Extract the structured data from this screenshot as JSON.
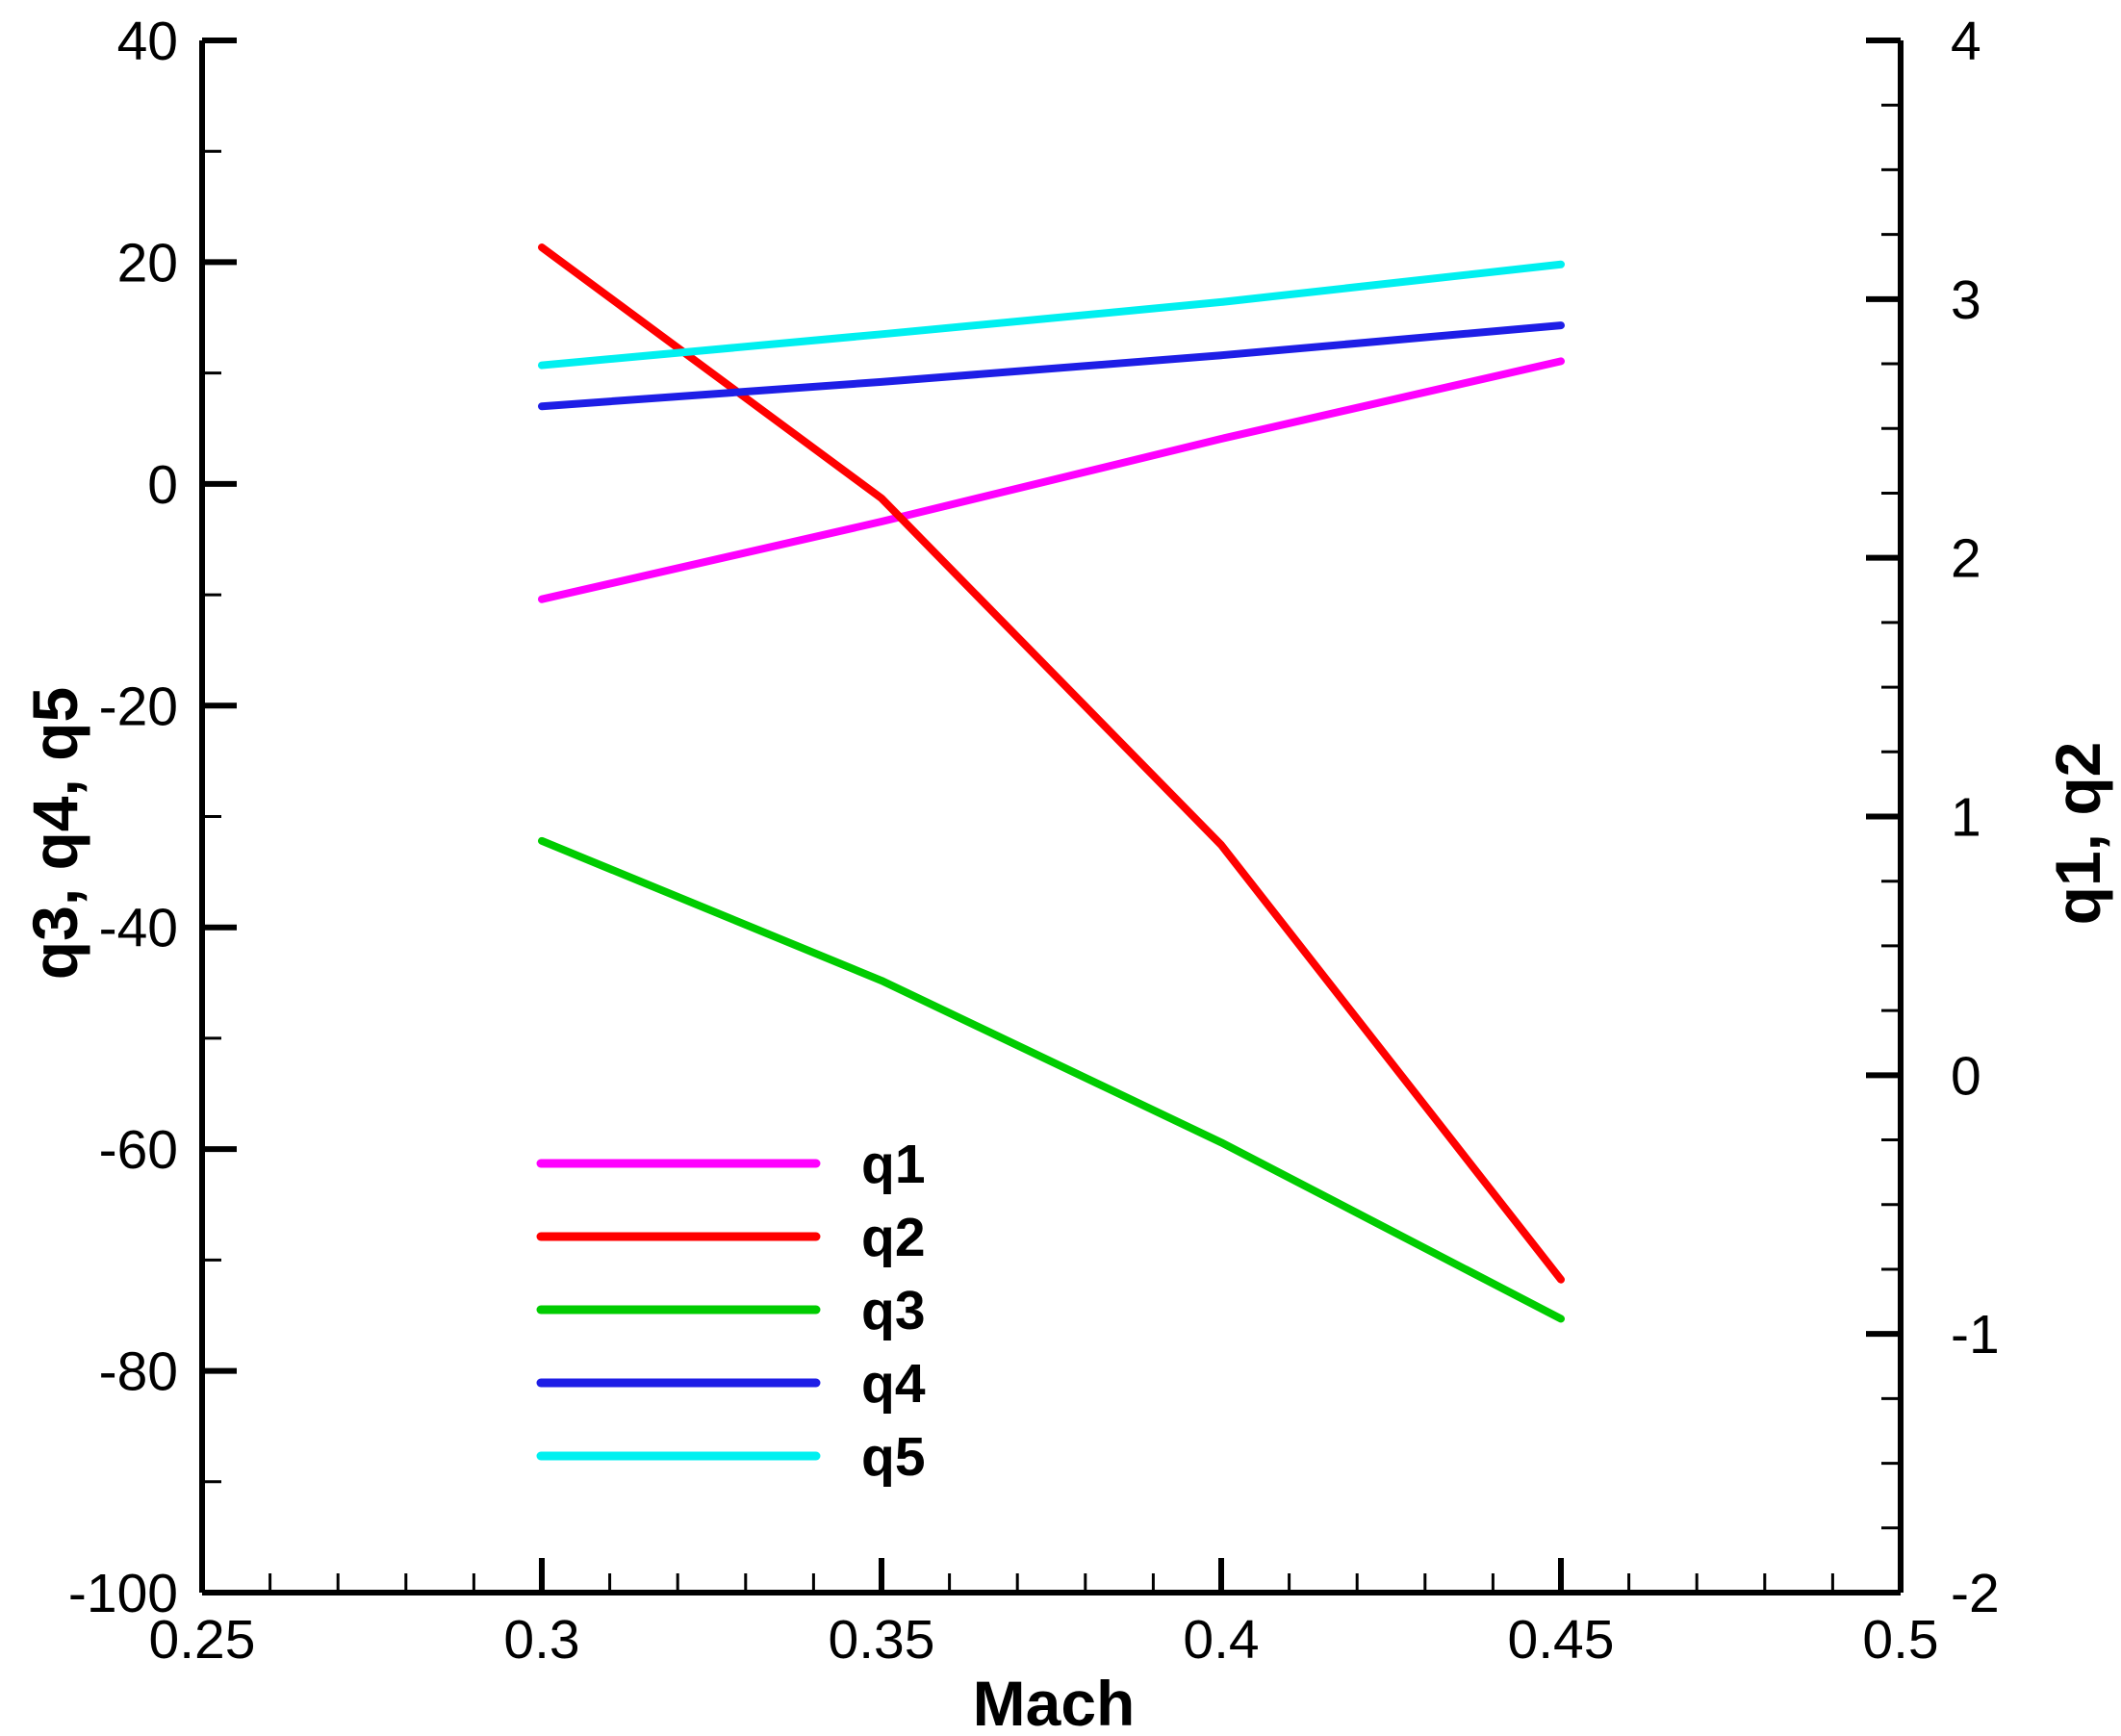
{
  "chart_data": {
    "type": "line",
    "title": "",
    "xlabel": "Mach",
    "ylabel_left": "q3, q4, q5",
    "ylabel_right": "q1, q2",
    "xlim": [
      0.25,
      0.5
    ],
    "ylim_left": [
      -100,
      40
    ],
    "ylim_right": [
      -2,
      4
    ],
    "x_ticks": [
      "0.25",
      "0.3",
      "0.35",
      "0.4",
      "0.45",
      "0.5"
    ],
    "y_left_ticks": [
      "-100",
      "-80",
      "-60",
      "-40",
      "-20",
      "0",
      "20",
      "40"
    ],
    "y_right_ticks": [
      "-2",
      "-1",
      "0",
      "1",
      "2",
      "3",
      "4"
    ],
    "grid": false,
    "legend_position": "lower-left",
    "x": [
      0.3,
      0.35,
      0.4,
      0.45
    ],
    "series": [
      {
        "name": "q1",
        "axis": "right",
        "color": "#ff00ff",
        "values": [
          1.84,
          2.14,
          2.46,
          2.76
        ]
      },
      {
        "name": "q2",
        "axis": "right",
        "color": "#ff0000",
        "values": [
          3.2,
          2.23,
          0.89,
          -0.79
        ]
      },
      {
        "name": "q3",
        "axis": "left",
        "color": "#00cc00",
        "values": [
          -32.2,
          -44.8,
          -59.4,
          -75.3
        ]
      },
      {
        "name": "q4",
        "axis": "left",
        "color": "#1e1ee6",
        "values": [
          7.0,
          9.2,
          11.6,
          14.3
        ]
      },
      {
        "name": "q5",
        "axis": "left",
        "color": "#00f0f0",
        "values": [
          10.7,
          13.5,
          16.4,
          19.8
        ]
      }
    ]
  }
}
